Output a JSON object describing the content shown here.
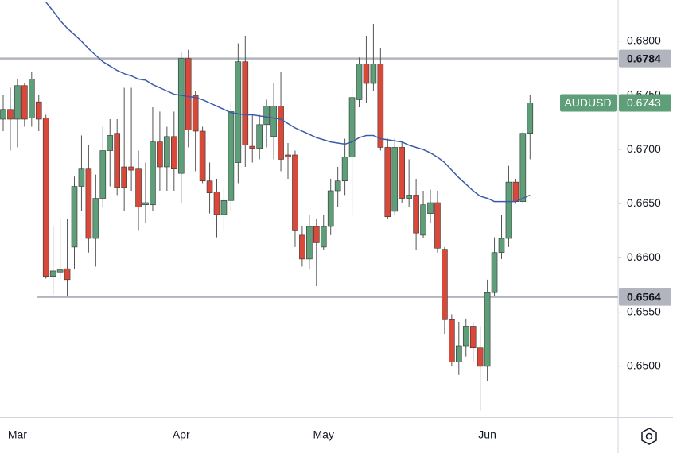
{
  "chart_data": {
    "type": "candlestick",
    "symbol": "AUDUSD",
    "categories": [
      null,
      null,
      "Mar",
      null,
      null,
      null,
      null,
      null,
      null,
      null,
      null,
      null,
      null,
      null,
      null,
      null,
      null,
      null,
      null,
      null,
      null,
      null,
      null,
      null,
      null,
      "Apr",
      null,
      null,
      null,
      null,
      null,
      null,
      null,
      null,
      null,
      null,
      null,
      null,
      null,
      null,
      null,
      null,
      null,
      null,
      null,
      "May",
      null,
      null,
      null,
      null,
      null,
      null,
      null,
      null,
      null,
      null,
      null,
      null,
      null,
      null,
      null,
      null,
      null,
      null,
      null,
      null,
      null,
      null,
      "Jun",
      null,
      null,
      null,
      null,
      null,
      null
    ],
    "open": [
      0.6728,
      0.6737,
      0.6728,
      0.6759,
      0.6729,
      0.6744,
      0.6729,
      0.6583,
      0.6587,
      0.659,
      0.661,
      0.6666,
      0.6682,
      0.6618,
      0.6655,
      0.6699,
      0.6715,
      0.6684,
      0.6684,
      0.6682,
      0.6649,
      0.6649,
      0.6707,
      0.6684,
      0.6712,
      0.6678,
      0.6784,
      0.675,
      0.6717,
      0.6671,
      0.6661,
      0.664,
      0.6653,
      0.6688,
      0.6781,
      0.6703,
      0.6701,
      0.6723,
      0.6712,
      0.674,
      0.6695,
      0.6695,
      0.6621,
      0.6599,
      0.6629,
      0.661,
      0.6629,
      0.6662,
      0.6671,
      0.6693,
      0.6746,
      0.6779,
      0.6761,
      0.6779,
      0.6702,
      0.6643,
      0.6702,
      0.6655,
      0.6658,
      0.6621,
      0.6641,
      0.6651,
      0.6608,
      0.6543,
      0.6504,
      0.6519,
      0.6537,
      0.6517,
      0.65,
      0.6568,
      0.6605,
      0.6618,
      0.667,
      0.6652,
      0.6715
    ],
    "high": [
      0.675,
      0.6757,
      0.6765,
      0.6761,
      0.6772,
      0.675,
      0.6732,
      0.6629,
      0.6636,
      0.6636,
      0.6675,
      0.6713,
      0.6704,
      0.6677,
      0.6721,
      0.6728,
      0.6728,
      0.6757,
      0.6757,
      0.6699,
      0.6688,
      0.6739,
      0.6735,
      0.6721,
      0.6735,
      0.679,
      0.6792,
      0.6754,
      0.6721,
      0.6688,
      0.6673,
      0.6666,
      0.6743,
      0.6798,
      0.6805,
      0.6732,
      0.6732,
      0.6746,
      0.6761,
      0.6772,
      0.6706,
      0.6699,
      0.6629,
      0.664,
      0.6636,
      0.664,
      0.6673,
      0.6684,
      0.671,
      0.6757,
      0.6785,
      0.6805,
      0.6816,
      0.6794,
      0.671,
      0.671,
      0.6707,
      0.6691,
      0.6673,
      0.6662,
      0.6663,
      0.6662,
      0.661,
      0.6548,
      0.6541,
      0.6544,
      0.6541,
      0.6537,
      0.658,
      0.6619,
      0.664,
      0.6685,
      0.6673,
      0.6717,
      0.675
    ],
    "low": [
      0.6717,
      0.6699,
      0.6702,
      0.6721,
      0.6721,
      0.6717,
      0.6581,
      0.6566,
      0.6581,
      0.6565,
      0.659,
      0.6643,
      0.6605,
      0.6592,
      0.6647,
      0.6666,
      0.6658,
      0.6643,
      0.6662,
      0.6625,
      0.6632,
      0.6643,
      0.6662,
      0.6662,
      0.6662,
      0.6651,
      0.6702,
      0.668,
      0.6669,
      0.6641,
      0.6619,
      0.6625,
      0.6643,
      0.6669,
      0.6684,
      0.6688,
      0.6691,
      0.6702,
      0.6691,
      0.668,
      0.6673,
      0.661,
      0.6592,
      0.659,
      0.6574,
      0.6607,
      0.6621,
      0.6647,
      0.6658,
      0.664,
      0.6739,
      0.6743,
      0.6754,
      0.6699,
      0.6636,
      0.664,
      0.6651,
      0.6647,
      0.6607,
      0.6618,
      0.6632,
      0.6605,
      0.653,
      0.65,
      0.6492,
      0.6509,
      0.6504,
      0.6459,
      0.6486,
      0.6565,
      0.6599,
      0.661,
      0.665,
      0.665,
      0.6691
    ],
    "close": [
      0.6737,
      0.6728,
      0.6759,
      0.6728,
      0.6765,
      0.6728,
      0.6583,
      0.6588,
      0.6589,
      0.658,
      0.6666,
      0.6682,
      0.6618,
      0.6655,
      0.6699,
      0.6713,
      0.6665,
      0.6665,
      0.6681,
      0.6647,
      0.6651,
      0.6707,
      0.6684,
      0.6712,
      0.6682,
      0.6784,
      0.6718,
      0.6717,
      0.6671,
      0.666,
      0.664,
      0.6653,
      0.6735,
      0.6781,
      0.6704,
      0.6701,
      0.6723,
      0.674,
      0.674,
      0.6691,
      0.6693,
      0.6625,
      0.6599,
      0.6629,
      0.6614,
      0.6629,
      0.6662,
      0.6671,
      0.6693,
      0.6748,
      0.6779,
      0.6761,
      0.6779,
      0.6702,
      0.6638,
      0.6702,
      0.6655,
      0.6658,
      0.6623,
      0.6649,
      0.6651,
      0.6609,
      0.6543,
      0.6504,
      0.6519,
      0.6537,
      0.6517,
      0.65,
      0.6568,
      0.6605,
      0.6618,
      0.667,
      0.6652,
      0.6715,
      0.6743
    ],
    "up_color": "#5e9e78",
    "down_color": "#d9493a",
    "moving_average": {
      "color": "#3b5ba9",
      "values": [
        null,
        null,
        null,
        null,
        null,
        null,
        0.6836,
        0.6828,
        0.6819,
        0.6812,
        0.6806,
        0.68,
        0.6793,
        0.6787,
        0.6781,
        0.6777,
        0.6773,
        0.677,
        0.6768,
        0.6765,
        0.6764,
        0.676,
        0.6757,
        0.6754,
        0.6751,
        0.675,
        0.6749,
        0.6748,
        0.6746,
        0.6743,
        0.674,
        0.6737,
        0.6734,
        0.6733,
        0.6732,
        0.6732,
        0.6731,
        0.673,
        0.6729,
        0.6728,
        0.6724,
        0.672,
        0.6717,
        0.6714,
        0.6711,
        0.6709,
        0.6707,
        0.6706,
        0.6705,
        0.6707,
        0.6711,
        0.6713,
        0.6713,
        0.671,
        0.6709,
        0.6708,
        0.6707,
        0.6704,
        0.6702,
        0.67,
        0.6697,
        0.6693,
        0.6688,
        0.6681,
        0.6674,
        0.6668,
        0.6662,
        0.6657,
        0.6655,
        0.6652,
        0.6652,
        0.6652,
        0.6652,
        0.6655,
        0.6658
      ]
    },
    "levels": [
      {
        "value": 0.6784,
        "label": "0.6784"
      },
      {
        "value": 0.6564,
        "label": "0.6564"
      }
    ],
    "last_price": {
      "value": 0.6743,
      "label": "0.6743"
    },
    "ylim": [
      0.6453,
      0.6838
    ],
    "yticks": [
      {
        "value": 0.65,
        "label": "0.6500"
      },
      {
        "value": 0.655,
        "label": "0.6550"
      },
      {
        "value": 0.66,
        "label": "0.6600"
      },
      {
        "value": 0.665,
        "label": "0.6650"
      },
      {
        "value": 0.67,
        "label": "0.6700"
      },
      {
        "value": 0.675,
        "label": "0.6750"
      },
      {
        "value": 0.68,
        "label": "0.6800"
      }
    ],
    "grid": false
  }
}
